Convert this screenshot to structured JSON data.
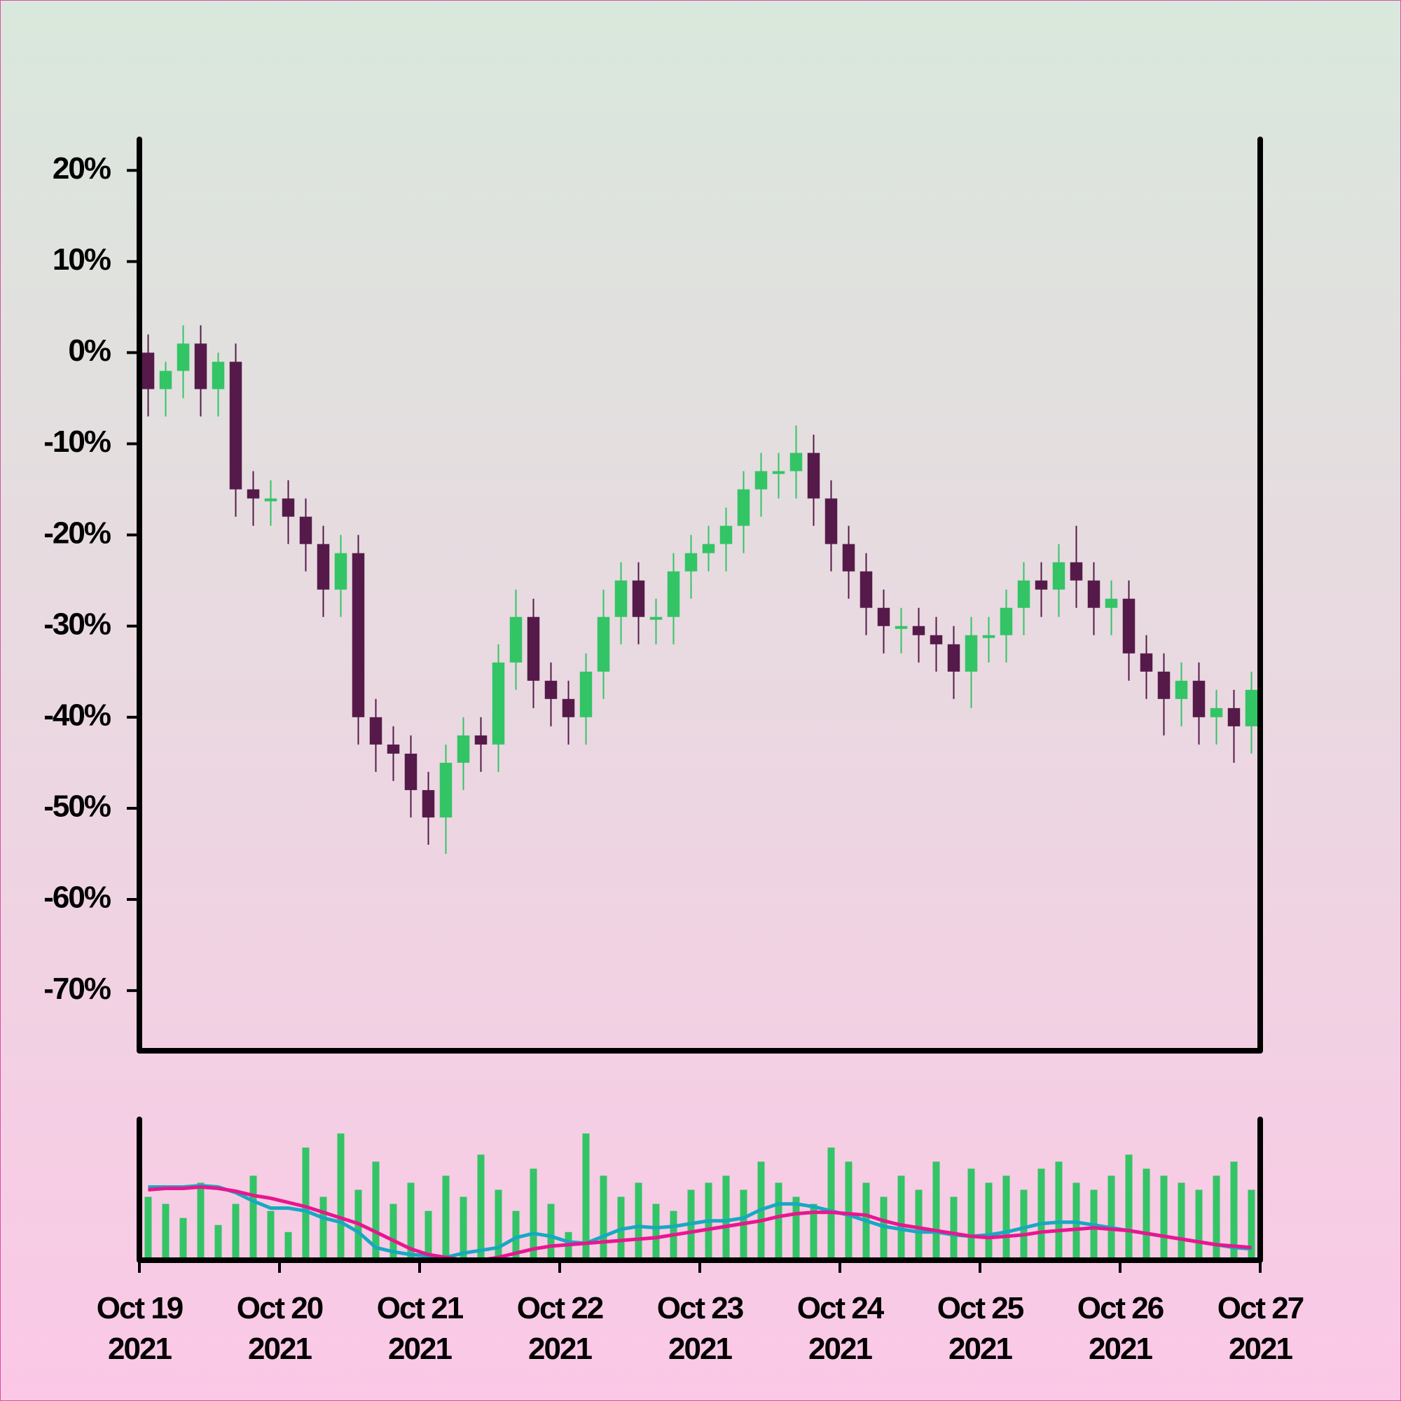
{
  "chart_data": {
    "type": "candlestick",
    "x": [
      "2021-10-19 00:00",
      "2021-10-19 03:00",
      "2021-10-19 06:00",
      "2021-10-19 09:00",
      "2021-10-19 12:00",
      "2021-10-19 15:00",
      "2021-10-19 18:00",
      "2021-10-19 21:00",
      "2021-10-20 00:00",
      "2021-10-20 03:00",
      "2021-10-20 06:00",
      "2021-10-20 09:00",
      "2021-10-20 12:00",
      "2021-10-20 15:00",
      "2021-10-20 18:00",
      "2021-10-20 21:00",
      "2021-10-21 00:00",
      "2021-10-21 03:00",
      "2021-10-21 06:00",
      "2021-10-21 09:00",
      "2021-10-21 12:00",
      "2021-10-21 15:00",
      "2021-10-21 18:00",
      "2021-10-21 21:00",
      "2021-10-22 00:00",
      "2021-10-22 03:00",
      "2021-10-22 06:00",
      "2021-10-22 09:00",
      "2021-10-22 12:00",
      "2021-10-22 15:00",
      "2021-10-22 18:00",
      "2021-10-22 21:00",
      "2021-10-23 00:00",
      "2021-10-23 03:00",
      "2021-10-23 06:00",
      "2021-10-23 09:00",
      "2021-10-23 12:00",
      "2021-10-23 15:00",
      "2021-10-23 18:00",
      "2021-10-23 21:00",
      "2021-10-24 00:00",
      "2021-10-24 03:00",
      "2021-10-24 06:00",
      "2021-10-24 09:00",
      "2021-10-24 12:00",
      "2021-10-24 15:00",
      "2021-10-24 18:00",
      "2021-10-24 21:00",
      "2021-10-25 00:00",
      "2021-10-25 03:00",
      "2021-10-25 06:00",
      "2021-10-25 09:00",
      "2021-10-25 12:00",
      "2021-10-25 15:00",
      "2021-10-25 18:00",
      "2021-10-25 21:00",
      "2021-10-26 00:00",
      "2021-10-26 03:00",
      "2021-10-26 06:00",
      "2021-10-26 09:00",
      "2021-10-26 12:00",
      "2021-10-26 15:00",
      "2021-10-26 18:00",
      "2021-10-26 21:00"
    ],
    "open": [
      0,
      -4,
      -2,
      1,
      -4,
      -1,
      -15,
      -16,
      -16,
      -18,
      -21,
      -26,
      -22,
      -40,
      -43,
      -44,
      -48,
      -51,
      -45,
      -42,
      -43,
      -34,
      -29,
      -36,
      -38,
      -40,
      -35,
      -29,
      -25,
      -29,
      -29,
      -24,
      -22,
      -21,
      -19,
      -15,
      -13,
      -13,
      -11,
      -16,
      -21,
      -24,
      -28,
      -30,
      -30,
      -31,
      -32,
      -35,
      -31,
      -31,
      -28,
      -25,
      -26,
      -23,
      -25,
      -28,
      -27,
      -33,
      -35,
      -38,
      -36,
      -40,
      -39,
      -41
    ],
    "high": [
      2,
      -1,
      3,
      3,
      0,
      1,
      -13,
      -14,
      -14,
      -16,
      -19,
      -20,
      -20,
      -38,
      -41,
      -42,
      -46,
      -43,
      -40,
      -40,
      -32,
      -26,
      -27,
      -34,
      -36,
      -33,
      -26,
      -23,
      -23,
      -27,
      -22,
      -20,
      -19,
      -17,
      -13,
      -11,
      -11,
      -8,
      -9,
      -14,
      -19,
      -22,
      -26,
      -28,
      -28,
      -29,
      -30,
      -29,
      -29,
      -26,
      -23,
      -23,
      -21,
      -19,
      -23,
      -25,
      -25,
      -31,
      -33,
      -34,
      -34,
      -37,
      -37,
      -35
    ],
    "low": [
      -7,
      -7,
      -5,
      -7,
      -7,
      -18,
      -19,
      -19,
      -21,
      -24,
      -29,
      -29,
      -43,
      -46,
      -47,
      -51,
      -54,
      -55,
      -48,
      -46,
      -46,
      -37,
      -39,
      -41,
      -43,
      -43,
      -38,
      -32,
      -32,
      -32,
      -32,
      -27,
      -24,
      -24,
      -22,
      -18,
      -16,
      -16,
      -19,
      -24,
      -27,
      -31,
      -33,
      -33,
      -34,
      -35,
      -38,
      -39,
      -34,
      -34,
      -31,
      -29,
      -29,
      -28,
      -31,
      -31,
      -36,
      -38,
      -42,
      -41,
      -43,
      -43,
      -45,
      -44
    ],
    "close": [
      -4,
      -2,
      1,
      -4,
      -1,
      -15,
      -16,
      -16,
      -18,
      -21,
      -26,
      -22,
      -40,
      -43,
      -44,
      -48,
      -51,
      -45,
      -42,
      -43,
      -34,
      -29,
      -36,
      -38,
      -40,
      -35,
      -29,
      -25,
      -29,
      -29,
      -24,
      -22,
      -21,
      -19,
      -15,
      -13,
      -13,
      -11,
      -16,
      -21,
      -24,
      -28,
      -30,
      -30,
      -31,
      -32,
      -35,
      -31,
      -31,
      -28,
      -25,
      -26,
      -23,
      -25,
      -28,
      -27,
      -33,
      -35,
      -38,
      -36,
      -40,
      -39,
      -41,
      -37
    ],
    "up_color": "#33c466",
    "down_color": "#561a4a",
    "volume": [
      45,
      40,
      30,
      55,
      25,
      40,
      60,
      35,
      20,
      80,
      45,
      90,
      50,
      70,
      40,
      55,
      35,
      60,
      45,
      75,
      50,
      35,
      65,
      40,
      20,
      90,
      60,
      45,
      55,
      40,
      35,
      50,
      55,
      60,
      50,
      70,
      55,
      45,
      40,
      80,
      70,
      55,
      45,
      60,
      50,
      70,
      45,
      65,
      55,
      60,
      50,
      65,
      70,
      55,
      50,
      60,
      75,
      65,
      60,
      55,
      50,
      60,
      70,
      50
    ],
    "volume_color": "#33c466",
    "volume_lim": [
      0,
      100
    ],
    "ma_lines": [
      {
        "color": "#17a9c0",
        "values": [
          52,
          52,
          52,
          53,
          52,
          48,
          42,
          37,
          37,
          35,
          30,
          27,
          20,
          9,
          6,
          4,
          3,
          2,
          5,
          7,
          9,
          16,
          19,
          17,
          13,
          12,
          17,
          22,
          24,
          23,
          24,
          26,
          28,
          28,
          30,
          36,
          40,
          40,
          38,
          35,
          32,
          28,
          24,
          22,
          20,
          20,
          18,
          17,
          18,
          20,
          23,
          26,
          27,
          27,
          25,
          23,
          21,
          19,
          17,
          15,
          13,
          11,
          9,
          8
        ]
      },
      {
        "color": "#e8168f",
        "values": [
          50,
          51,
          51,
          52,
          51,
          49,
          46,
          44,
          41,
          38,
          34,
          30,
          26,
          20,
          14,
          8,
          4,
          2,
          0,
          0,
          2,
          5,
          8,
          10,
          11,
          12,
          13,
          14,
          15,
          16,
          18,
          20,
          22,
          24,
          26,
          28,
          31,
          33,
          34,
          34,
          33,
          32,
          28,
          25,
          23,
          21,
          19,
          17,
          16,
          17,
          18,
          20,
          21,
          22,
          23,
          22,
          21,
          19,
          17,
          15,
          13,
          11,
          10,
          9
        ]
      }
    ],
    "xlim": [
      "2021-10-19 00:00",
      "2021-10-27 00:00"
    ],
    "xticks": [
      {
        "value": "2021-10-19 00:00",
        "label": "Oct 19\n2021"
      },
      {
        "value": "2021-10-20 00:00",
        "label": "Oct 20\n2021"
      },
      {
        "value": "2021-10-21 00:00",
        "label": "Oct 21\n2021"
      },
      {
        "value": "2021-10-22 00:00",
        "label": "Oct 22\n2021"
      },
      {
        "value": "2021-10-23 00:00",
        "label": "Oct 23\n2021"
      },
      {
        "value": "2021-10-24 00:00",
        "label": "Oct 24\n2021"
      },
      {
        "value": "2021-10-25 00:00",
        "label": "Oct 25\n2021"
      },
      {
        "value": "2021-10-26 00:00",
        "label": "Oct 26\n2021"
      },
      {
        "value": "2021-10-27 00:00",
        "label": "Oct 27\n2021"
      }
    ],
    "ylim": [
      -76.6,
      23.4
    ],
    "yticks": [
      {
        "value": 20,
        "label": "20%"
      },
      {
        "value": 10,
        "label": "10%"
      },
      {
        "value": 0,
        "label": "0%"
      },
      {
        "value": -10,
        "label": "-10%"
      },
      {
        "value": -20,
        "label": "-20%"
      },
      {
        "value": -30,
        "label": "-30%"
      },
      {
        "value": -40,
        "label": "-40%"
      },
      {
        "value": -50,
        "label": "-50%"
      },
      {
        "value": -60,
        "label": "-60%"
      },
      {
        "value": -70,
        "label": "-70%"
      }
    ]
  }
}
